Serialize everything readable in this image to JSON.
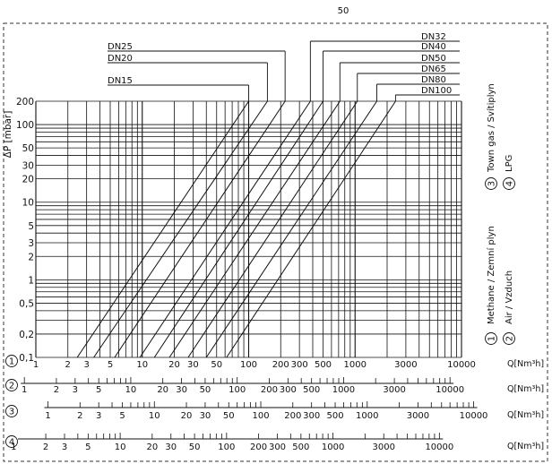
{
  "frame_label": "50",
  "chart_data": {
    "type": "line",
    "x_scale": "log",
    "y_scale": "log",
    "xlim": [
      1,
      10000
    ],
    "ylim": [
      0.1,
      200
    ],
    "grid": true,
    "ylabel": "ΔP [mbar]",
    "y_ticks": [
      {
        "v": 200,
        "label": "200"
      },
      {
        "v": 100,
        "label": "100"
      },
      {
        "v": 50,
        "label": "50"
      },
      {
        "v": 30,
        "label": "30"
      },
      {
        "v": 20,
        "label": "20"
      },
      {
        "v": 10,
        "label": "10"
      },
      {
        "v": 5,
        "label": "5"
      },
      {
        "v": 3,
        "label": "3"
      },
      {
        "v": 2,
        "label": "2"
      },
      {
        "v": 1,
        "label": "1"
      },
      {
        "v": 0.5,
        "label": "0,5"
      },
      {
        "v": 0.2,
        "label": "0,2"
      },
      {
        "v": 0.1,
        "label": "0,1"
      }
    ],
    "x_ticks": [
      {
        "v": 1,
        "label": "1"
      },
      {
        "v": 2,
        "label": "2"
      },
      {
        "v": 3,
        "label": "3"
      },
      {
        "v": 5,
        "label": "5"
      },
      {
        "v": 10,
        "label": "10"
      },
      {
        "v": 20,
        "label": "20"
      },
      {
        "v": 30,
        "label": "30"
      },
      {
        "v": 50,
        "label": "50"
      },
      {
        "v": 100,
        "label": "100"
      },
      {
        "v": 200,
        "label": "200"
      },
      {
        "v": 300,
        "label": "300"
      },
      {
        "v": 500,
        "label": "500"
      },
      {
        "v": 1000,
        "label": "1000"
      },
      {
        "v": 3000,
        "label": "3000"
      },
      {
        "v": 10000,
        "label": "10000"
      }
    ],
    "series": [
      {
        "name": "DN15",
        "points": [
          [
            2.45,
            0.1
          ],
          [
            100,
            200
          ]
        ]
      },
      {
        "name": "DN20",
        "points": [
          [
            3.5,
            0.1
          ],
          [
            150,
            200
          ]
        ]
      },
      {
        "name": "DN25",
        "points": [
          [
            5.5,
            0.1
          ],
          [
            220,
            200
          ]
        ]
      },
      {
        "name": "DN32",
        "points": [
          [
            9.5,
            0.1
          ],
          [
            380,
            200
          ]
        ]
      },
      {
        "name": "DN40",
        "points": [
          [
            13,
            0.1
          ],
          [
            500,
            200
          ]
        ]
      },
      {
        "name": "DN50",
        "points": [
          [
            18,
            0.1
          ],
          [
            720,
            200
          ]
        ]
      },
      {
        "name": "DN65",
        "points": [
          [
            27,
            0.1
          ],
          [
            1050,
            200
          ]
        ]
      },
      {
        "name": "DN80",
        "points": [
          [
            40,
            0.1
          ],
          [
            1600,
            200
          ]
        ]
      },
      {
        "name": "DN100",
        "points": [
          [
            62,
            0.1
          ],
          [
            2400,
            200
          ]
        ]
      }
    ],
    "gas_scales": [
      {
        "id": "1",
        "factor": 1.0,
        "unit": "Q[Nm³h]"
      },
      {
        "id": "2",
        "factor": 0.78,
        "unit": "Q[Nm³h]"
      },
      {
        "id": "3",
        "factor": 1.3,
        "unit": "Q[Nm³h]"
      },
      {
        "id": "4",
        "factor": 0.62,
        "unit": "Q[Nm³h]"
      }
    ],
    "legend": [
      {
        "group": "left",
        "items": [
          {
            "id": "1",
            "text": "Methane / Zemní plyn"
          },
          {
            "id": "2",
            "text": "Air / Vzduch"
          }
        ]
      },
      {
        "group": "right",
        "items": [
          {
            "id": "3",
            "text": "Town gas / Svítiplyn"
          },
          {
            "id": "4",
            "text": "LPG"
          }
        ]
      }
    ]
  }
}
